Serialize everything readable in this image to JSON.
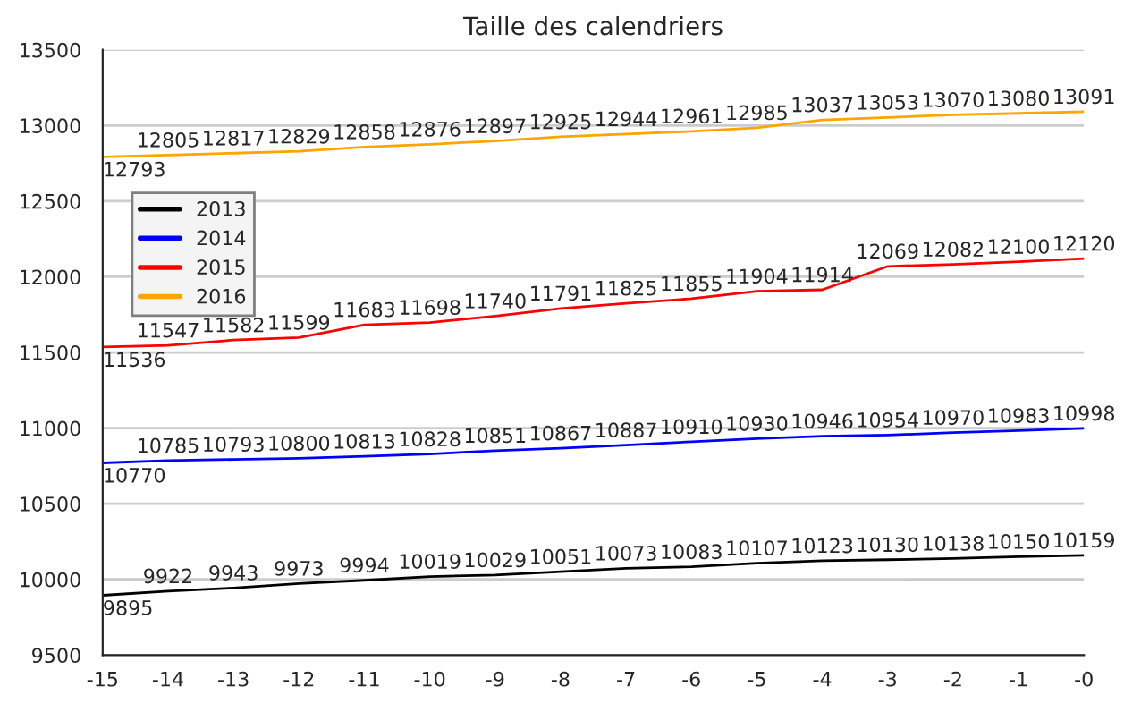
{
  "chart_data": {
    "type": "line",
    "title": "Taille des calendriers",
    "x": [
      -15,
      -14,
      -13,
      -12,
      -11,
      -10,
      -9,
      -8,
      -7,
      -6,
      -5,
      -4,
      -3,
      -2,
      -1,
      0
    ],
    "series": [
      {
        "name": "2013",
        "color": "#000000",
        "values": [
          9895,
          9922,
          9943,
          9973,
          9994,
          10019,
          10029,
          10051,
          10073,
          10083,
          10107,
          10123,
          10130,
          10138,
          10150,
          10159
        ]
      },
      {
        "name": "2014",
        "color": "#0000ff",
        "values": [
          10770,
          10785,
          10793,
          10800,
          10813,
          10828,
          10851,
          10867,
          10887,
          10910,
          10930,
          10946,
          10954,
          10970,
          10983,
          10998
        ]
      },
      {
        "name": "2015",
        "color": "#ff0000",
        "values": [
          11536,
          11547,
          11582,
          11599,
          11683,
          11698,
          11740,
          11791,
          11825,
          11855,
          11904,
          11914,
          12069,
          12082,
          12100,
          12120
        ]
      },
      {
        "name": "2016",
        "color": "#ffa500",
        "values": [
          12793,
          12805,
          12817,
          12829,
          12858,
          12876,
          12897,
          12925,
          12944,
          12961,
          12985,
          13037,
          13053,
          13070,
          13080,
          13091
        ]
      }
    ],
    "xlim": [
      -15,
      0
    ],
    "xticks": [
      -15,
      -14,
      -13,
      -12,
      -11,
      -10,
      -9,
      -8,
      -7,
      -6,
      -5,
      -4,
      -3,
      -2,
      -1,
      {
        "value": 0,
        "label": "-0"
      }
    ],
    "ylim": [
      9500,
      13500
    ],
    "yticks": [
      9500,
      10000,
      10500,
      11000,
      11500,
      12000,
      12500,
      13000,
      13500
    ],
    "grid": "y",
    "legend": "top left",
    "data_labels": true,
    "marker": "none",
    "line_style": "solid"
  }
}
